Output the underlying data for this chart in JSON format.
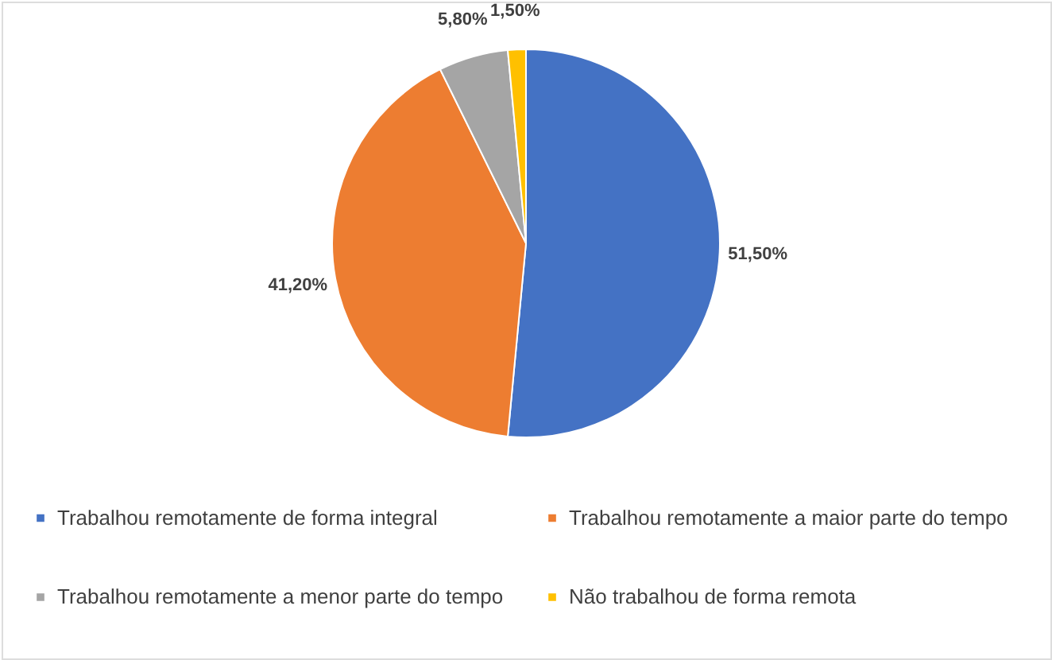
{
  "chart_data": {
    "type": "pie",
    "categories": [
      "Trabalhou remotamente de forma integral",
      "Trabalhou remotamente a maior parte do tempo",
      "Trabalhou remotamente a menor parte do tempo",
      "Não trabalhou de forma remota"
    ],
    "values": [
      51.5,
      41.2,
      5.8,
      1.5
    ],
    "colors": [
      "#4472c4",
      "#ed7d31",
      "#a5a5a5",
      "#ffc000"
    ],
    "value_labels": [
      "51,50%",
      "41,20%",
      "5,80%",
      "1,50%"
    ],
    "legend": "bottom"
  }
}
